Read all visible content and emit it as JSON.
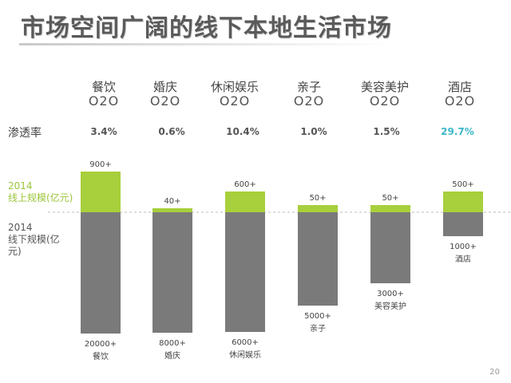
{
  "title": "市场空间广阔的线下本地生活市场",
  "penetration_label": "渗透率",
  "online_label": [
    "2014",
    "线上规模(亿元)"
  ],
  "offline_label": [
    "2014",
    "线下规模(亿",
    "元)"
  ],
  "slide_number": "20",
  "highlight_color": "#3bb7c9",
  "chart_data": {
    "type": "bar",
    "categories": [
      "餐饮",
      "婚庆",
      "休闲娱乐",
      "亲子",
      "美容美护",
      "酒店"
    ],
    "category_sub": "O2O",
    "penetration": [
      "3.4%",
      "0.6%",
      "10.4%",
      "1.0%",
      "1.5%",
      "29.7%"
    ],
    "highlight_index": 5,
    "series": [
      {
        "name": "线上规模(亿元)",
        "color": "#a8cf3c",
        "values": [
          900,
          40,
          600,
          50,
          50,
          500
        ],
        "labels": [
          "900+",
          "40+",
          "600+",
          "50+",
          "50+",
          "500+"
        ]
      },
      {
        "name": "线下规模(亿元)",
        "color": "#7a7a7a",
        "values": [
          20000,
          8000,
          6000,
          5000,
          3000,
          1000
        ],
        "labels": [
          "20000+",
          "8000+",
          "6000+",
          "5000+",
          "3000+",
          "1000+"
        ]
      }
    ],
    "bottom_names": [
      "餐饮",
      "婚庆",
      "休闲娱乐",
      "亲子",
      "美容美护",
      "酒店"
    ]
  }
}
